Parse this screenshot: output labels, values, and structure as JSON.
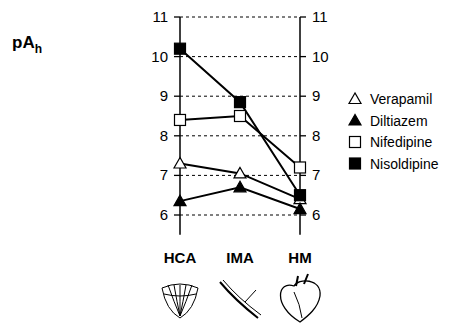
{
  "chart_data": {
    "type": "line",
    "y_label": "pAh",
    "categories": [
      "HCA",
      "IMA",
      "HM"
    ],
    "series": [
      {
        "name": "Verapamil",
        "color": "#000000",
        "marker": "triangle-open",
        "values": [
          7.3,
          7.05,
          6.4
        ]
      },
      {
        "name": "Diltiazem",
        "color": "#000000",
        "marker": "triangle-filled",
        "values": [
          6.35,
          6.7,
          6.15
        ]
      },
      {
        "name": "Nifedipine",
        "color": "#000000",
        "marker": "square-open",
        "values": [
          8.4,
          8.5,
          7.2
        ]
      },
      {
        "name": "Nisoldipine",
        "color": "#000000",
        "marker": "square-filled",
        "values": [
          10.2,
          8.85,
          6.5
        ]
      }
    ],
    "ylim": [
      5.5,
      11
    ],
    "yticks": [
      6,
      7,
      8,
      9,
      10,
      11
    ],
    "grid": true,
    "legend": "right"
  }
}
